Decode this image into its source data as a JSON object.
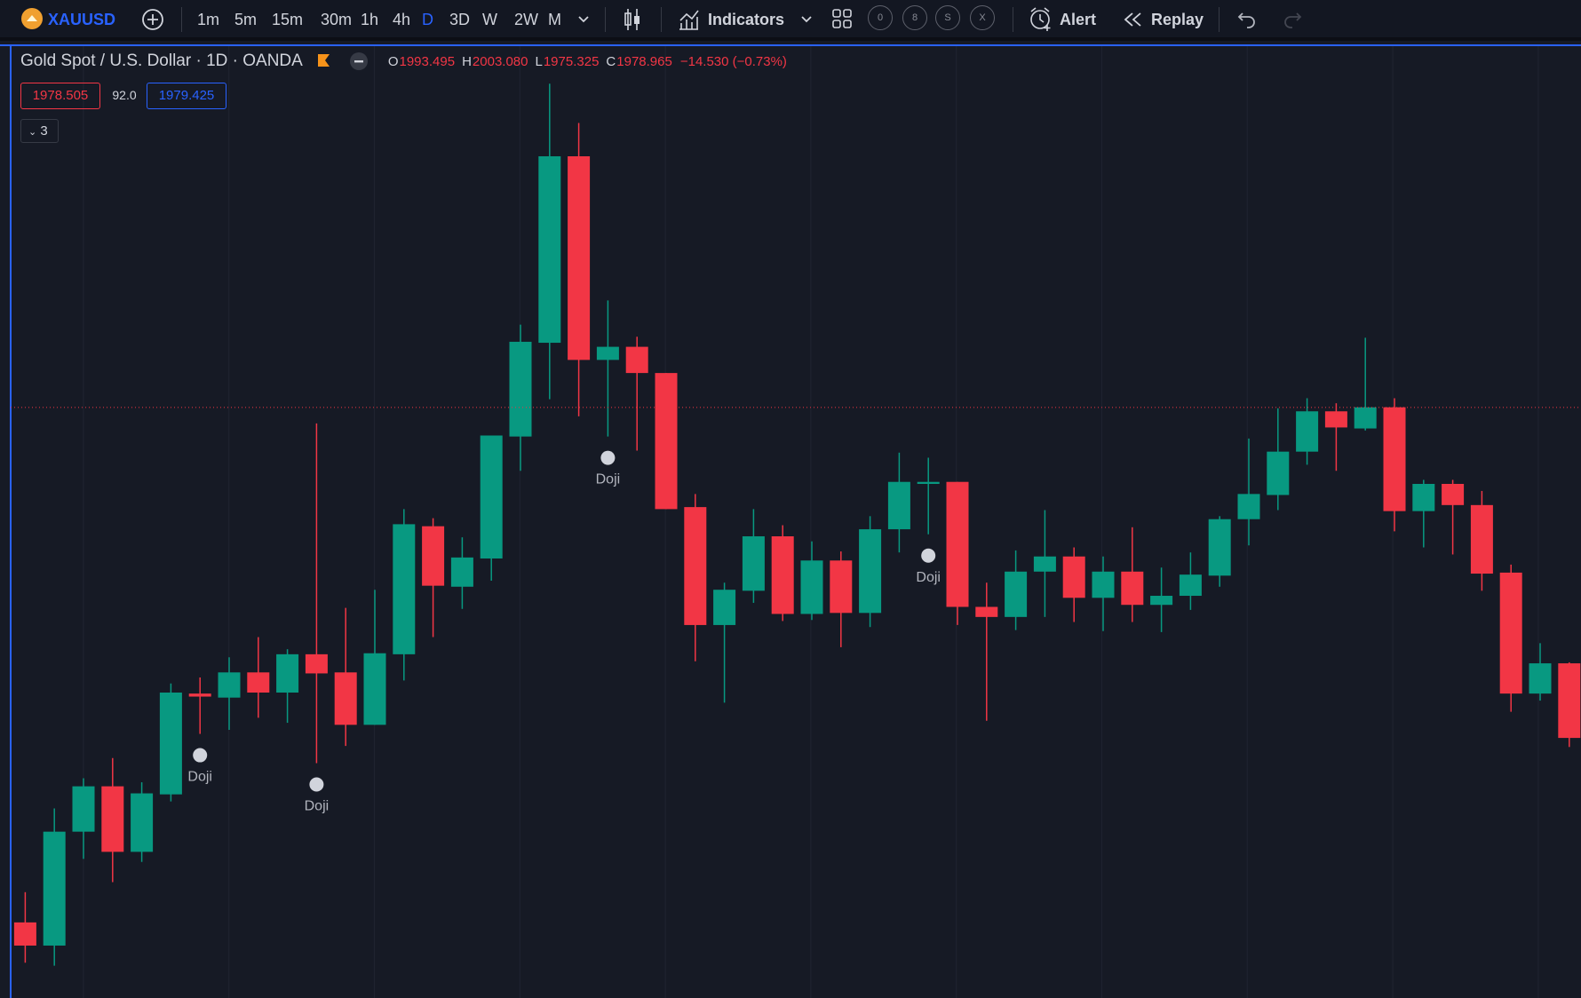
{
  "toolbar": {
    "symbol": "XAUUSD",
    "intervals": [
      "1m",
      "5m",
      "15m",
      "30m",
      "1h",
      "4h",
      "D",
      "3D",
      "W",
      "2W",
      "M"
    ],
    "active_interval": "D",
    "indicators": "Indicators",
    "layout_slots": [
      "0",
      "8",
      "S",
      "X"
    ],
    "alert": "Alert",
    "replay": "Replay"
  },
  "legend": {
    "title": "Gold Spot / U.S. Dollar · 1D · OANDA",
    "open_key": "O",
    "open": 1993.495,
    "high_key": "H",
    "high": {
      "value": 2003.08,
      "label": "2003.080"
    },
    "low_key": "L",
    "low": 1975.325,
    "close_key": "C",
    "close": 1978.965,
    "change": "−14.530 (−0.73%)"
  },
  "price_boxes": {
    "bid": "1978.505",
    "spread": "92.0",
    "ask": "1979.425"
  },
  "collapse": "3",
  "chart_data": {
    "type": "candlestick",
    "up_color": "#089981",
    "down_color": "#f23645",
    "ylim": [
      1832.5,
      2069
    ],
    "open": [
      1851.25,
      1845.5,
      1873.75,
      1885,
      1868.75,
      1883,
      1908,
      1907,
      1913.25,
      1908.25,
      1917.75,
      1913.25,
      1900.25,
      1917.75,
      1949.5,
      1934.5,
      1941.5,
      1971.75,
      1995,
      2041.25,
      1990.75,
      1994,
      1987.5,
      1954.25,
      1925,
      1933.5,
      1947,
      1927.75,
      1941,
      1928,
      1948.75,
      1960,
      1960.5,
      1929.5,
      1927,
      1938.25,
      1942,
      1931.75,
      1938.25,
      1930,
      1932.25,
      1937.25,
      1951.25,
      1957.25,
      1968,
      1978,
      1973.75,
      1979,
      1953.25,
      1960,
      1954.75,
      1938,
      1908,
      1915.5
    ],
    "high": [
      1858.75,
      1879.5,
      1887,
      1892,
      1886,
      1910.5,
      1912,
      1917,
      1922,
      1919,
      1975,
      1929.25,
      1933.75,
      1953.75,
      1951.5,
      1946.75,
      1972,
      1999.5,
      2059.25,
      2049.5,
      2005.5,
      1996.5,
      1987.5,
      1957.5,
      1935.5,
      1953.75,
      1949.75,
      1945.75,
      1943.25,
      1952,
      1967.75,
      1966.5,
      1960.5,
      1935.5,
      1943.5,
      1953.5,
      1944.25,
      1942,
      1949.25,
      1939.25,
      1943,
      1952,
      1971.25,
      1978.75,
      1981.25,
      1980,
      1996.25,
      1981.25,
      1961,
      1961,
      1958.25,
      1940,
      1920.5,
      1915.75
    ],
    "low": [
      1841.25,
      1840.5,
      1867,
      1861.25,
      1866.25,
      1881.25,
      1898,
      1899,
      1902,
      1900.75,
      1890.75,
      1895,
      1900.25,
      1911.25,
      1922,
      1929,
      1936,
      1963.25,
      1981,
      1976.75,
      1971.75,
      1968.25,
      1953.75,
      1916,
      1905.75,
      1930.5,
      1926,
      1926.25,
      1919.5,
      1924.5,
      1943,
      1947.5,
      1925,
      1901.25,
      1923.75,
      1927,
      1925.75,
      1923.5,
      1925.75,
      1923.25,
      1928.75,
      1934.5,
      1944.75,
      1953.5,
      1964.75,
      1963.25,
      1973.25,
      1948.25,
      1944.25,
      1942.5,
      1933.5,
      1903.5,
      1906.25,
      1894.75
    ],
    "close": [
      1845.5,
      1873.75,
      1885,
      1868.75,
      1883.25,
      1908.25,
      1907.25,
      1913.25,
      1908.25,
      1917.75,
      1913,
      1900.25,
      1918,
      1950,
      1934.75,
      1941.75,
      1972,
      1995.25,
      2041.25,
      1990.75,
      1994,
      1987.5,
      1953.75,
      1925,
      1933.75,
      1947,
      1927.75,
      1941,
      1928,
      1948.75,
      1960.5,
      1960.5,
      1929.5,
      1927,
      1938.25,
      1942,
      1931.75,
      1938.25,
      1930,
      1932.25,
      1937.5,
      1951.25,
      1957.5,
      1968,
      1978,
      1974,
      1979,
      1953.25,
      1960,
      1954.75,
      1937.75,
      1908,
      1915.5,
      1897
    ],
    "annotations": [
      {
        "at": 6,
        "text": "Doji"
      },
      {
        "at": 10,
        "text": "Doji"
      },
      {
        "at": 20,
        "text": "Doji"
      },
      {
        "at": 31,
        "text": "Doji"
      }
    ]
  }
}
